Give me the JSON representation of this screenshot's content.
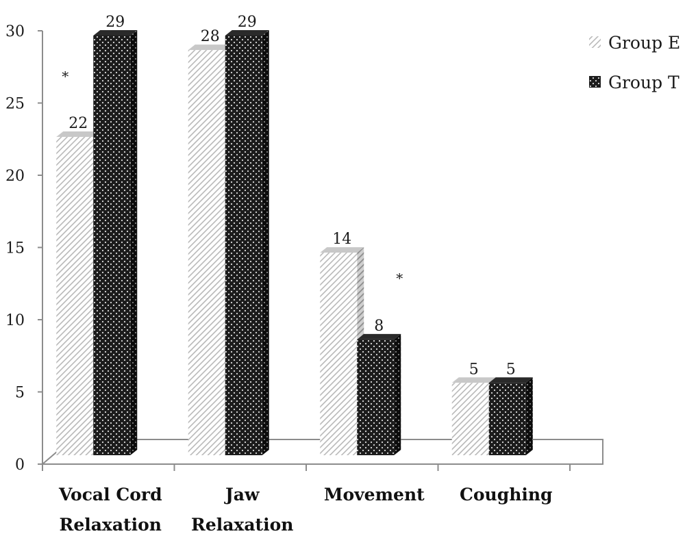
{
  "chart_data": {
    "type": "bar",
    "title": "",
    "xlabel": "",
    "ylabel": "",
    "ylim": [
      0,
      30
    ],
    "yticks": [
      "0",
      "5",
      "10",
      "15",
      "20",
      "25",
      "30"
    ],
    "categories": [
      [
        "Vocal Cord",
        "Relaxation"
      ],
      [
        "Jaw",
        "Relaxation"
      ],
      [
        "Movement"
      ],
      [
        "Coughing"
      ]
    ],
    "series": [
      {
        "name": "Group E",
        "values": [
          22,
          28,
          14,
          5
        ],
        "labels": [
          "22",
          "28",
          "14",
          "5"
        ],
        "pattern": "diagonal-hatch",
        "color": "#d9d9d9"
      },
      {
        "name": "Group T",
        "values": [
          29,
          29,
          8,
          5
        ],
        "labels": [
          "29",
          "29",
          "8",
          "5"
        ],
        "pattern": "dotted-dark",
        "color": "#1c1c1c"
      }
    ],
    "significance": [
      {
        "category": "Vocal Cord Relaxation",
        "mark": "*"
      },
      {
        "category": "Movement",
        "mark": "*"
      }
    ],
    "legend_position": "top-right",
    "grid": false,
    "three_d": true
  }
}
